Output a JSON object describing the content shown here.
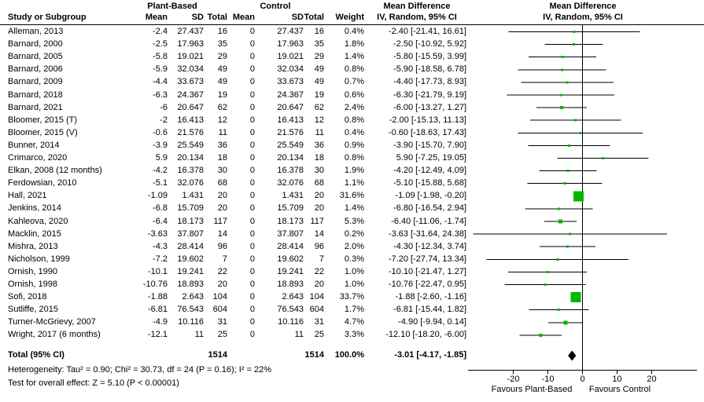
{
  "header": {
    "group1": "Plant-Based",
    "group2": "Control",
    "study_col": "Study or Subgroup",
    "mean": "Mean",
    "sd": "SD",
    "total": "Total",
    "weight": "Weight",
    "md_title": "Mean Difference",
    "md_sub": "IV, Random, 95% CI",
    "plot_title": "Mean Difference",
    "plot_sub": "IV, Random, 95% CI"
  },
  "chart_data": {
    "type": "forest",
    "effect_measure": "Mean Difference, IV, Random, 95% CI",
    "marker_color": "#00b800",
    "studies": [
      {
        "name": "Alleman, 2013",
        "mean_t": "-2.4",
        "sd_t": "27.437",
        "n_t": "16",
        "mean_c": "0",
        "sd_c": "27.437",
        "n_c": "16",
        "weight": "0.4%",
        "w": 0.4,
        "md_label": "-2.40 [-21.41, 16.61]",
        "md": -2.4,
        "lo": -21.41,
        "hi": 16.61
      },
      {
        "name": "Barnard, 2000",
        "mean_t": "-2.5",
        "sd_t": "17.963",
        "n_t": "35",
        "mean_c": "0",
        "sd_c": "17.963",
        "n_c": "35",
        "weight": "1.8%",
        "w": 1.8,
        "md_label": "-2.50 [-10.92, 5.92]",
        "md": -2.5,
        "lo": -10.92,
        "hi": 5.92
      },
      {
        "name": "Barnard, 2005",
        "mean_t": "-5.8",
        "sd_t": "19.021",
        "n_t": "29",
        "mean_c": "0",
        "sd_c": "19.021",
        "n_c": "29",
        "weight": "1.4%",
        "w": 1.4,
        "md_label": "-5.80 [-15.59, 3.99]",
        "md": -5.8,
        "lo": -15.59,
        "hi": 3.99
      },
      {
        "name": "Barnard, 2006",
        "mean_t": "-5.9",
        "sd_t": "32.034",
        "n_t": "49",
        "mean_c": "0",
        "sd_c": "32.034",
        "n_c": "49",
        "weight": "0.8%",
        "w": 0.8,
        "md_label": "-5.90 [-18.58, 6.78]",
        "md": -5.9,
        "lo": -18.58,
        "hi": 6.78
      },
      {
        "name": "Barnard, 2009",
        "mean_t": "-4.4",
        "sd_t": "33.673",
        "n_t": "49",
        "mean_c": "0",
        "sd_c": "33.673",
        "n_c": "49",
        "weight": "0.7%",
        "w": 0.7,
        "md_label": "-4.40 [-17.73, 8.93]",
        "md": -4.4,
        "lo": -17.73,
        "hi": 8.93
      },
      {
        "name": "Barnard, 2018",
        "mean_t": "-6.3",
        "sd_t": "24.367",
        "n_t": "19",
        "mean_c": "0",
        "sd_c": "24.367",
        "n_c": "19",
        "weight": "0.6%",
        "w": 0.6,
        "md_label": "-6.30 [-21.79, 9.19]",
        "md": -6.3,
        "lo": -21.79,
        "hi": 9.19
      },
      {
        "name": "Barnard, 2021",
        "mean_t": "-6",
        "sd_t": "20.647",
        "n_t": "62",
        "mean_c": "0",
        "sd_c": "20.647",
        "n_c": "62",
        "weight": "2.4%",
        "w": 2.4,
        "md_label": "-6.00 [-13.27, 1.27]",
        "md": -6.0,
        "lo": -13.27,
        "hi": 1.27
      },
      {
        "name": "Bloomer, 2015 (T)",
        "mean_t": "-2",
        "sd_t": "16.413",
        "n_t": "12",
        "mean_c": "0",
        "sd_c": "16.413",
        "n_c": "12",
        "weight": "0.8%",
        "w": 0.8,
        "md_label": "-2.00 [-15.13, 11.13]",
        "md": -2.0,
        "lo": -15.13,
        "hi": 11.13
      },
      {
        "name": "Bloomer, 2015 (V)",
        "mean_t": "-0.6",
        "sd_t": "21.576",
        "n_t": "11",
        "mean_c": "0",
        "sd_c": "21.576",
        "n_c": "11",
        "weight": "0.4%",
        "w": 0.4,
        "md_label": "-0.60 [-18.63, 17.43]",
        "md": -0.6,
        "lo": -18.63,
        "hi": 17.43
      },
      {
        "name": "Bunner, 2014",
        "mean_t": "-3.9",
        "sd_t": "25.549",
        "n_t": "36",
        "mean_c": "0",
        "sd_c": "25.549",
        "n_c": "36",
        "weight": "0.9%",
        "w": 0.9,
        "md_label": "-3.90 [-15.70, 7.90]",
        "md": -3.9,
        "lo": -15.7,
        "hi": 7.9
      },
      {
        "name": "Crimarco, 2020",
        "mean_t": "5.9",
        "sd_t": "20.134",
        "n_t": "18",
        "mean_c": "0",
        "sd_c": "20.134",
        "n_c": "18",
        "weight": "0.8%",
        "w": 0.8,
        "md_label": "5.90 [-7.25, 19.05]",
        "md": 5.9,
        "lo": -7.25,
        "hi": 19.05
      },
      {
        "name": "Elkan, 2008 (12 months)",
        "mean_t": "-4.2",
        "sd_t": "16.378",
        "n_t": "30",
        "mean_c": "0",
        "sd_c": "16.378",
        "n_c": "30",
        "weight": "1.9%",
        "w": 1.9,
        "md_label": "-4.20 [-12.49, 4.09]",
        "md": -4.2,
        "lo": -12.49,
        "hi": 4.09
      },
      {
        "name": "Ferdowsian, 2010",
        "mean_t": "-5.1",
        "sd_t": "32.076",
        "n_t": "68",
        "mean_c": "0",
        "sd_c": "32.076",
        "n_c": "68",
        "weight": "1.1%",
        "w": 1.1,
        "md_label": "-5.10 [-15.88, 5.68]",
        "md": -5.1,
        "lo": -15.88,
        "hi": 5.68
      },
      {
        "name": "Hall, 2021",
        "mean_t": "-1.09",
        "sd_t": "1.431",
        "n_t": "20",
        "mean_c": "0",
        "sd_c": "1.431",
        "n_c": "20",
        "weight": "31.6%",
        "w": 31.6,
        "md_label": "-1.09 [-1.98, -0.20]",
        "md": -1.09,
        "lo": -1.98,
        "hi": -0.2
      },
      {
        "name": "Jenkins, 2014",
        "mean_t": "-6.8",
        "sd_t": "15.709",
        "n_t": "20",
        "mean_c": "0",
        "sd_c": "15.709",
        "n_c": "20",
        "weight": "1.4%",
        "w": 1.4,
        "md_label": "-6.80 [-16.54, 2.94]",
        "md": -6.8,
        "lo": -16.54,
        "hi": 2.94
      },
      {
        "name": "Kahleova, 2020",
        "mean_t": "-6.4",
        "sd_t": "18.173",
        "n_t": "117",
        "mean_c": "0",
        "sd_c": "18.173",
        "n_c": "117",
        "weight": "5.3%",
        "w": 5.3,
        "md_label": "-6.40 [-11.06, -1.74]",
        "md": -6.4,
        "lo": -11.06,
        "hi": -1.74
      },
      {
        "name": "Macklin, 2015",
        "mean_t": "-3.63",
        "sd_t": "37.807",
        "n_t": "14",
        "mean_c": "0",
        "sd_c": "37.807",
        "n_c": "14",
        "weight": "0.2%",
        "w": 0.2,
        "md_label": "-3.63 [-31.64, 24.38]",
        "md": -3.63,
        "lo": -31.64,
        "hi": 24.38
      },
      {
        "name": "Mishra, 2013",
        "mean_t": "-4.3",
        "sd_t": "28.414",
        "n_t": "96",
        "mean_c": "0",
        "sd_c": "28.414",
        "n_c": "96",
        "weight": "2.0%",
        "w": 2.0,
        "md_label": "-4.30 [-12.34, 3.74]",
        "md": -4.3,
        "lo": -12.34,
        "hi": 3.74
      },
      {
        "name": "Nicholson, 1999",
        "mean_t": "-7.2",
        "sd_t": "19.602",
        "n_t": "7",
        "mean_c": "0",
        "sd_c": "19.602",
        "n_c": "7",
        "weight": "0.3%",
        "w": 0.3,
        "md_label": "-7.20 [-27.74, 13.34]",
        "md": -7.2,
        "lo": -27.74,
        "hi": 13.34
      },
      {
        "name": "Ornish, 1990",
        "mean_t": "-10.1",
        "sd_t": "19.241",
        "n_t": "22",
        "mean_c": "0",
        "sd_c": "19.241",
        "n_c": "22",
        "weight": "1.0%",
        "w": 1.0,
        "md_label": "-10.10 [-21.47, 1.27]",
        "md": -10.1,
        "lo": -21.47,
        "hi": 1.27
      },
      {
        "name": "Ornish, 1998",
        "mean_t": "-10.76",
        "sd_t": "18.893",
        "n_t": "20",
        "mean_c": "0",
        "sd_c": "18.893",
        "n_c": "20",
        "weight": "1.0%",
        "w": 1.0,
        "md_label": "-10.76 [-22.47, 0.95]",
        "md": -10.76,
        "lo": -22.47,
        "hi": 0.95
      },
      {
        "name": "Sofi, 2018",
        "mean_t": "-1.88",
        "sd_t": "2.643",
        "n_t": "104",
        "mean_c": "0",
        "sd_c": "2.643",
        "n_c": "104",
        "weight": "33.7%",
        "w": 33.7,
        "md_label": "-1.88 [-2.60, -1.16]",
        "md": -1.88,
        "lo": -2.6,
        "hi": -1.16
      },
      {
        "name": "Sutliffe, 2015",
        "mean_t": "-6.81",
        "sd_t": "76.543",
        "n_t": "604",
        "mean_c": "0",
        "sd_c": "76.543",
        "n_c": "604",
        "weight": "1.7%",
        "w": 1.7,
        "md_label": "-6.81 [-15.44, 1.82]",
        "md": -6.81,
        "lo": -15.44,
        "hi": 1.82
      },
      {
        "name": "Turner-McGrievy, 2007",
        "mean_t": "-4.9",
        "sd_t": "10.116",
        "n_t": "31",
        "mean_c": "0",
        "sd_c": "10.116",
        "n_c": "31",
        "weight": "4.7%",
        "w": 4.7,
        "md_label": "-4.90 [-9.94, 0.14]",
        "md": -4.9,
        "lo": -9.94,
        "hi": 0.14
      },
      {
        "name": "Wright, 2017 (6 months)",
        "mean_t": "-12.1",
        "sd_t": "11",
        "n_t": "25",
        "mean_c": "0",
        "sd_c": "11",
        "n_c": "25",
        "weight": "3.3%",
        "w": 3.3,
        "md_label": "-12.10 [-18.20, -6.00]",
        "md": -12.1,
        "lo": -18.2,
        "hi": -6.0
      }
    ],
    "total": {
      "label": "Total (95% CI)",
      "n_t": "1514",
      "n_c": "1514",
      "weight": "100.0%",
      "md_label": "-3.01 [-4.17, -1.85]",
      "md": -3.01,
      "lo": -4.17,
      "hi": -1.85
    },
    "heterogeneity": "Heterogeneity: Tau² = 0.90; Chi² = 30.73, df = 24 (P = 0.16); I² = 22%",
    "overall_effect": "Test for overall effect: Z = 5.10 (P < 0.00001)",
    "axis": {
      "ticks": [
        -20,
        -10,
        0,
        10,
        20
      ],
      "tick_labels": [
        "-20",
        "-10",
        "0",
        "10",
        "20"
      ],
      "min": -33,
      "max": 33,
      "favours_left": "Favours Plant-Based",
      "favours_right": "Favours Control"
    }
  }
}
